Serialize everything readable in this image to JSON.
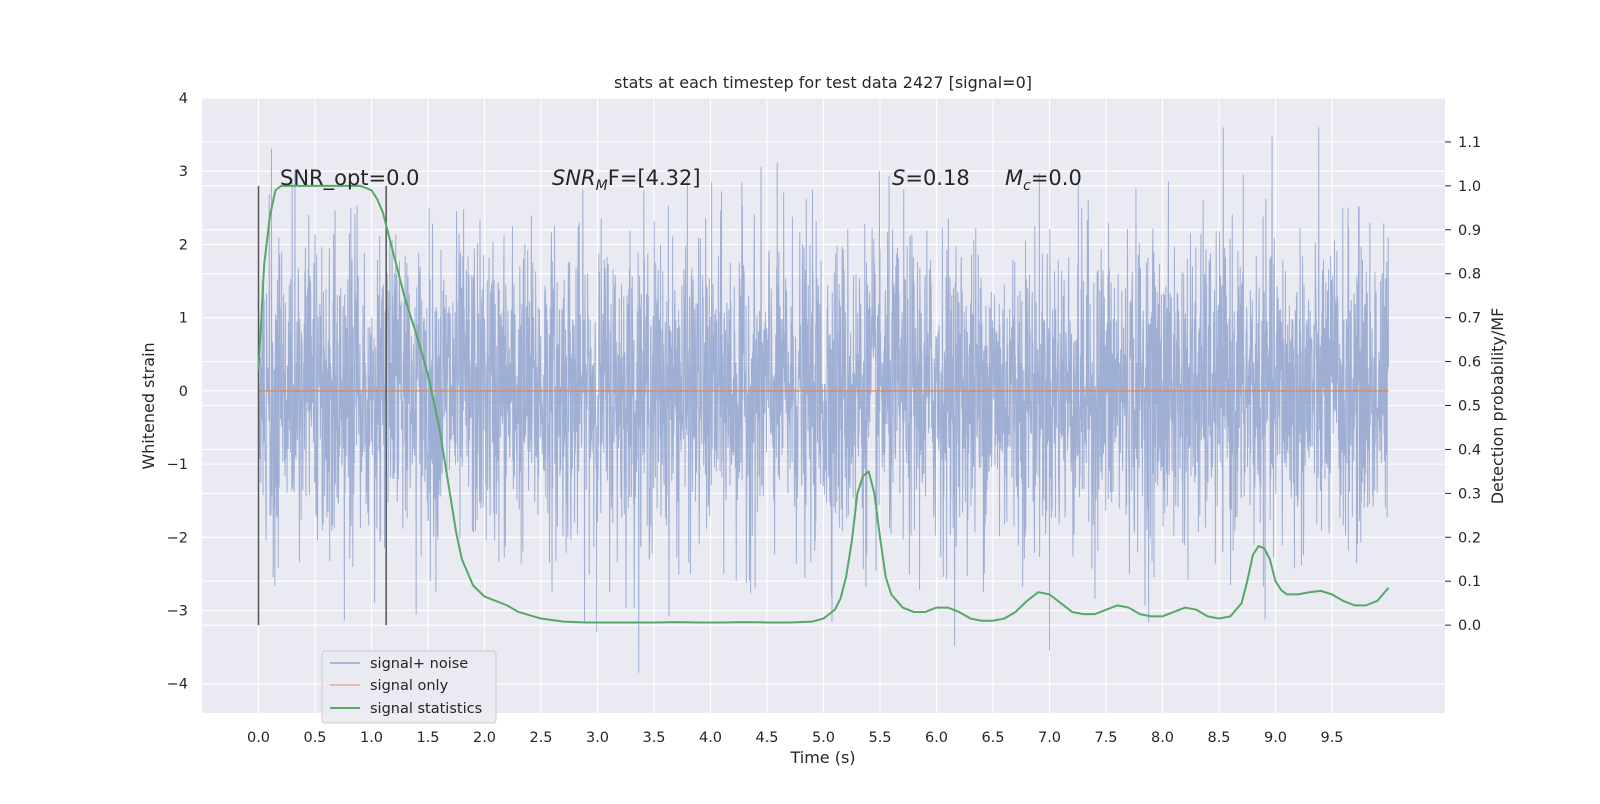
{
  "chart_data": {
    "type": "line",
    "title": "stats at each timestep for test data 2427 [signal=0]",
    "xlabel": "Time (s)",
    "ylabel_left": "Whitened strain",
    "ylabel_right": "Detection probability/MF",
    "xlim": [
      -0.5,
      10.5
    ],
    "ylim_left": [
      -4.4,
      4.0
    ],
    "ylim_right": [
      -0.2,
      1.2
    ],
    "xticks": [
      "0.0",
      "0.5",
      "1.0",
      "1.5",
      "2.0",
      "2.5",
      "3.0",
      "3.5",
      "4.0",
      "4.5",
      "5.0",
      "5.5",
      "6.0",
      "6.5",
      "7.0",
      "7.5",
      "8.0",
      "8.5",
      "9.0",
      "9.5"
    ],
    "yticks_left": [
      "−4",
      "−3",
      "−2",
      "−1",
      "0",
      "1",
      "2",
      "3",
      "4"
    ],
    "yticks_right": [
      "0.0",
      "0.1",
      "0.2",
      "0.3",
      "0.4",
      "0.5",
      "0.6",
      "0.7",
      "0.8",
      "0.9",
      "1.0",
      "1.1"
    ],
    "grid": true,
    "legend_position": "lower-left",
    "vertical_markers": [
      0.0,
      1.13
    ],
    "annotations": {
      "snr_opt": "SNR_opt=0.0",
      "snr_mf_italic": "SNR",
      "snr_mf_sub": "M",
      "snr_mf_rest": "F=[4.32]",
      "s_italic": "S",
      "s_rest": "=0.18",
      "mc_italic": "M",
      "mc_sub": "c",
      "mc_rest": "=0.0"
    },
    "series": [
      {
        "name": "signal+ noise",
        "axis": "left",
        "color": "#92a5cf",
        "description_note": "",
        "x_range": [
          0.0,
          10.0
        ],
        "envelope_max": 3.6,
        "envelope_min": -3.85
      },
      {
        "name": "signal only",
        "axis": "left",
        "color": "#dd8452",
        "x": [
          0.0,
          10.0
        ],
        "y": [
          0.0,
          0.0
        ]
      },
      {
        "name": "signal statistics",
        "axis": "right",
        "color": "#55a868",
        "x": [
          0.0,
          0.05,
          0.1,
          0.15,
          0.2,
          0.3,
          0.4,
          0.5,
          0.6,
          0.7,
          0.8,
          0.9,
          1.0,
          1.05,
          1.1,
          1.15,
          1.2,
          1.3,
          1.4,
          1.5,
          1.6,
          1.65,
          1.7,
          1.75,
          1.8,
          1.9,
          2.0,
          2.1,
          2.2,
          2.3,
          2.5,
          2.7,
          2.9,
          3.1,
          3.3,
          3.5,
          3.7,
          3.9,
          4.1,
          4.3,
          4.5,
          4.7,
          4.9,
          5.0,
          5.1,
          5.15,
          5.2,
          5.25,
          5.3,
          5.35,
          5.4,
          5.45,
          5.5,
          5.55,
          5.6,
          5.7,
          5.8,
          5.9,
          6.0,
          6.1,
          6.2,
          6.3,
          6.4,
          6.5,
          6.6,
          6.7,
          6.8,
          6.9,
          7.0,
          7.1,
          7.2,
          7.3,
          7.4,
          7.5,
          7.6,
          7.7,
          7.8,
          7.9,
          8.0,
          8.1,
          8.2,
          8.3,
          8.4,
          8.5,
          8.6,
          8.7,
          8.75,
          8.8,
          8.85,
          8.9,
          8.95,
          9.0,
          9.05,
          9.1,
          9.2,
          9.3,
          9.4,
          9.5,
          9.6,
          9.7,
          9.8,
          9.9,
          9.95,
          10.0
        ],
        "y": [
          0.58,
          0.82,
          0.93,
          0.99,
          1.0,
          1.0,
          1.0,
          1.0,
          1.0,
          1.0,
          1.0,
          1.0,
          0.99,
          0.97,
          0.94,
          0.89,
          0.84,
          0.74,
          0.66,
          0.57,
          0.45,
          0.37,
          0.29,
          0.21,
          0.15,
          0.09,
          0.065,
          0.055,
          0.045,
          0.03,
          0.015,
          0.008,
          0.006,
          0.006,
          0.006,
          0.006,
          0.007,
          0.006,
          0.006,
          0.007,
          0.006,
          0.006,
          0.008,
          0.015,
          0.035,
          0.06,
          0.11,
          0.19,
          0.3,
          0.34,
          0.35,
          0.3,
          0.2,
          0.11,
          0.07,
          0.04,
          0.03,
          0.03,
          0.04,
          0.04,
          0.03,
          0.015,
          0.01,
          0.01,
          0.015,
          0.03,
          0.055,
          0.075,
          0.07,
          0.05,
          0.03,
          0.025,
          0.025,
          0.035,
          0.045,
          0.04,
          0.025,
          0.02,
          0.02,
          0.03,
          0.04,
          0.035,
          0.02,
          0.015,
          0.02,
          0.05,
          0.1,
          0.16,
          0.18,
          0.175,
          0.15,
          0.1,
          0.08,
          0.07,
          0.07,
          0.075,
          0.078,
          0.07,
          0.055,
          0.045,
          0.045,
          0.055,
          0.07,
          0.085
        ]
      }
    ]
  }
}
